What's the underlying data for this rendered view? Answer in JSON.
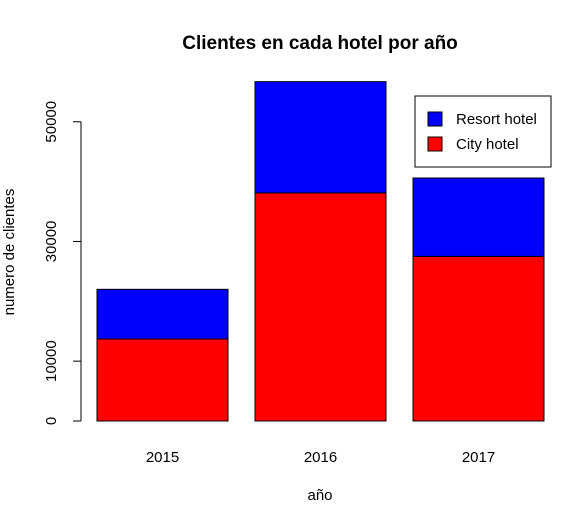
{
  "chart_data": {
    "type": "bar",
    "stacked": true,
    "title": "Clientes en cada hotel por año",
    "xlabel": "año",
    "ylabel": "numero de clientes",
    "categories": [
      "2015",
      "2016",
      "2017"
    ],
    "series": [
      {
        "name": "City hotel",
        "color": "#ff0000",
        "values": [
          13700,
          38100,
          27500
        ]
      },
      {
        "name": "Resort hotel",
        "color": "#0000ff",
        "values": [
          8300,
          18600,
          13100
        ]
      }
    ],
    "yticks": [
      0,
      10000,
      30000,
      50000
    ],
    "ylim": [
      0,
      57000
    ],
    "legend": {
      "position": "top-right",
      "entries": [
        {
          "label": "Resort hotel",
          "color": "#0000ff"
        },
        {
          "label": "City hotel",
          "color": "#ff0000"
        }
      ]
    },
    "grid": false
  }
}
